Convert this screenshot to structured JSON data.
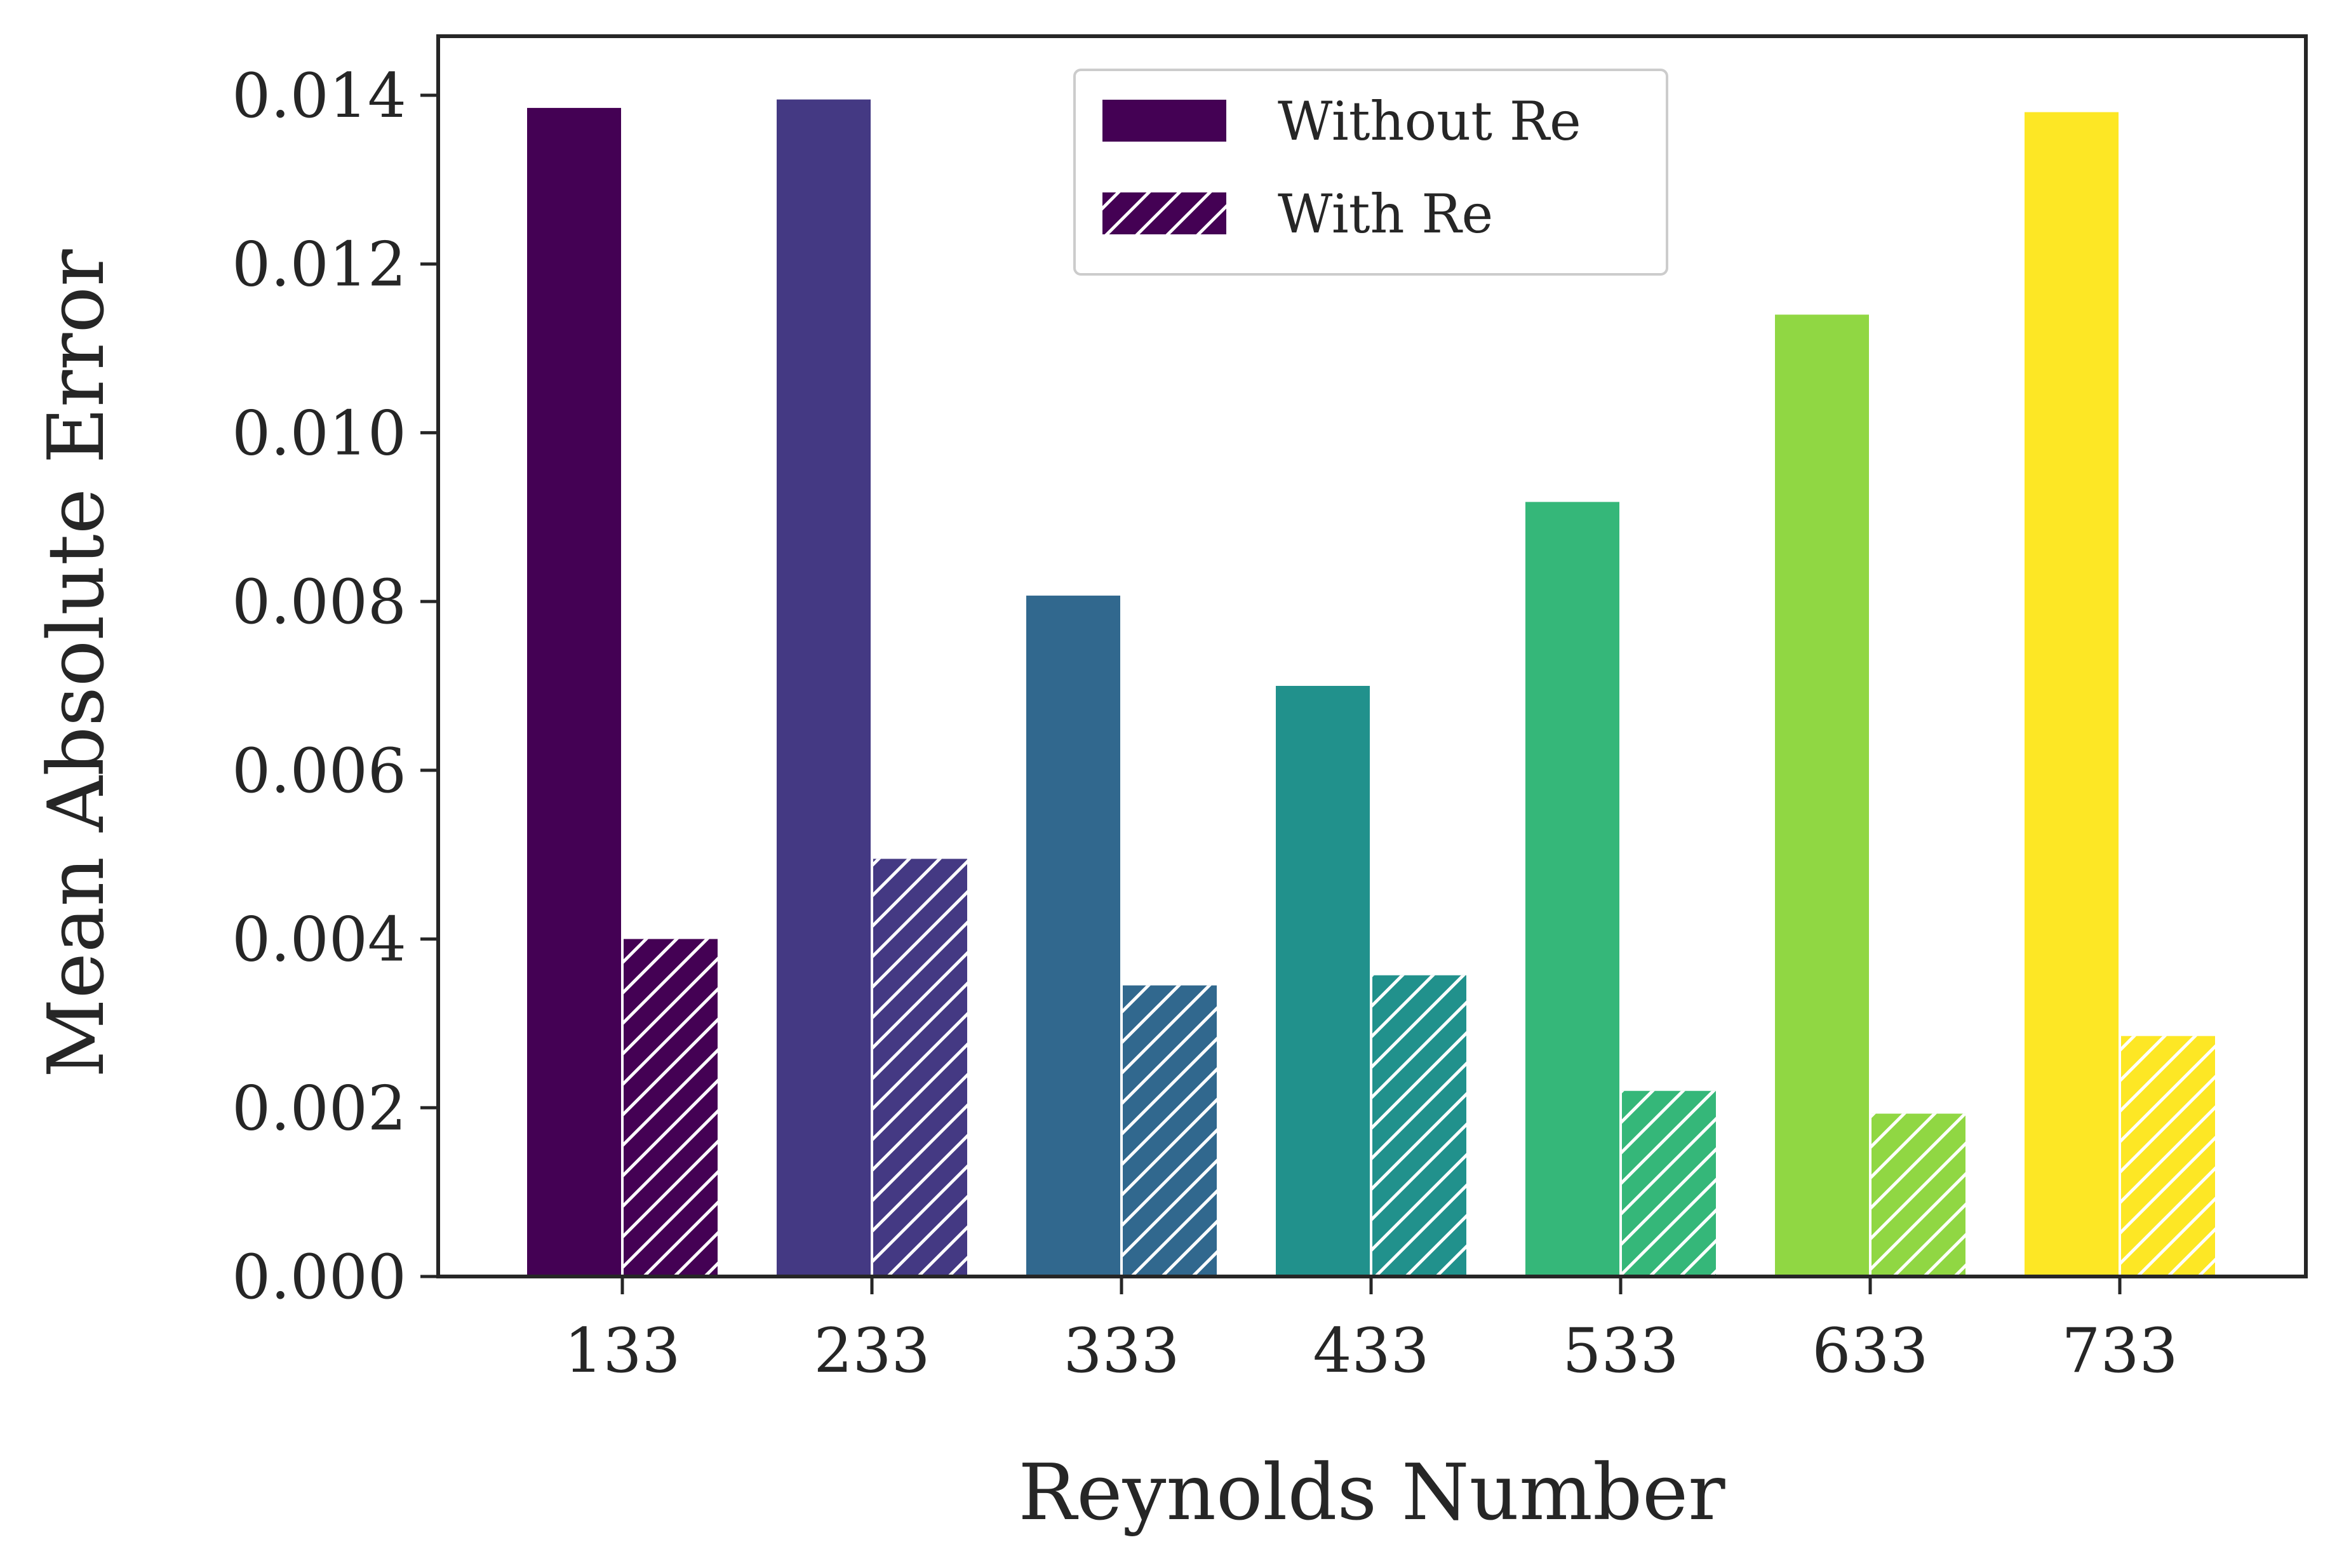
{
  "chart_data": {
    "type": "bar",
    "xlabel": "Reynolds Number",
    "ylabel": "Mean Absolute Error",
    "categories": [
      "133",
      "233",
      "333",
      "433",
      "533",
      "633",
      "733"
    ],
    "series": [
      {
        "name": "Without Re",
        "values": [
          0.01385,
          0.01395,
          0.00807,
          0.007,
          0.00918,
          0.0114,
          0.0138
        ],
        "pattern": "solid"
      },
      {
        "name": "With Re",
        "values": [
          0.004,
          0.00495,
          0.00345,
          0.00357,
          0.0022,
          0.00193,
          0.00285
        ],
        "pattern": "hatched"
      }
    ],
    "bar_colors": [
      "#440154",
      "#443983",
      "#31688e",
      "#21918c",
      "#35b779",
      "#90d743",
      "#fde725"
    ],
    "yticks": [
      "0.000",
      "0.002",
      "0.004",
      "0.006",
      "0.008",
      "0.010",
      "0.012",
      "0.014"
    ],
    "ylim": [
      0,
      0.0147
    ],
    "legend_position": "upper center",
    "grid": false
  }
}
